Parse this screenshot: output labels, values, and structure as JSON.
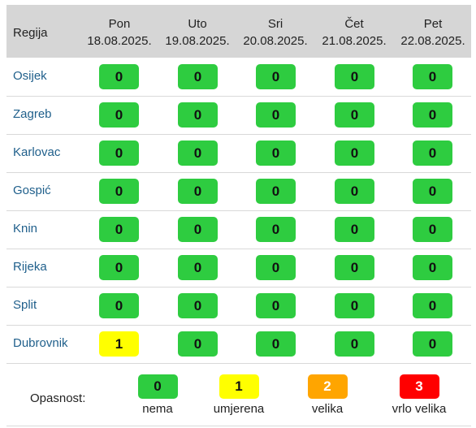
{
  "header": {
    "region_label": "Regija",
    "days": [
      {
        "name": "Pon",
        "date": "18.08.2025."
      },
      {
        "name": "Uto",
        "date": "19.08.2025."
      },
      {
        "name": "Sri",
        "date": "20.08.2025."
      },
      {
        "name": "Čet",
        "date": "21.08.2025."
      },
      {
        "name": "Pet",
        "date": "22.08.2025."
      }
    ]
  },
  "rows": [
    {
      "region": "Osijek",
      "values": [
        "0",
        "0",
        "0",
        "0",
        "0"
      ],
      "levels": [
        0,
        0,
        0,
        0,
        0
      ]
    },
    {
      "region": "Zagreb",
      "values": [
        "0",
        "0",
        "0",
        "0",
        "0"
      ],
      "levels": [
        0,
        0,
        0,
        0,
        0
      ]
    },
    {
      "region": "Karlovac",
      "values": [
        "0",
        "0",
        "0",
        "0",
        "0"
      ],
      "levels": [
        0,
        0,
        0,
        0,
        0
      ]
    },
    {
      "region": "Gospić",
      "values": [
        "0",
        "0",
        "0",
        "0",
        "0"
      ],
      "levels": [
        0,
        0,
        0,
        0,
        0
      ]
    },
    {
      "region": "Knin",
      "values": [
        "0",
        "0",
        "0",
        "0",
        "0"
      ],
      "levels": [
        0,
        0,
        0,
        0,
        0
      ]
    },
    {
      "region": "Rijeka",
      "values": [
        "0",
        "0",
        "0",
        "0",
        "0"
      ],
      "levels": [
        0,
        0,
        0,
        0,
        0
      ]
    },
    {
      "region": "Split",
      "values": [
        "0",
        "0",
        "0",
        "0",
        "0"
      ],
      "levels": [
        0,
        0,
        0,
        0,
        0
      ]
    },
    {
      "region": "Dubrovnik",
      "values": [
        "1",
        "0",
        "0",
        "0",
        "0"
      ],
      "levels": [
        1,
        0,
        0,
        0,
        0
      ]
    }
  ],
  "legend": {
    "label": "Opasnost:",
    "items": [
      {
        "value": "0",
        "name": "nema",
        "color": "#2ecc40"
      },
      {
        "value": "1",
        "name": "umjerena",
        "color": "#ffff00"
      },
      {
        "value": "2",
        "name": "velika",
        "color": "#ffa500"
      },
      {
        "value": "3",
        "name": "vrlo velika",
        "color": "#ff0000"
      }
    ]
  },
  "colors": {
    "level0": "#2ecc40",
    "level1": "#ffff00",
    "level2": "#ffa500",
    "level3": "#ff0000",
    "header_bg": "#d6d6d6",
    "link": "#1f5f8b"
  }
}
